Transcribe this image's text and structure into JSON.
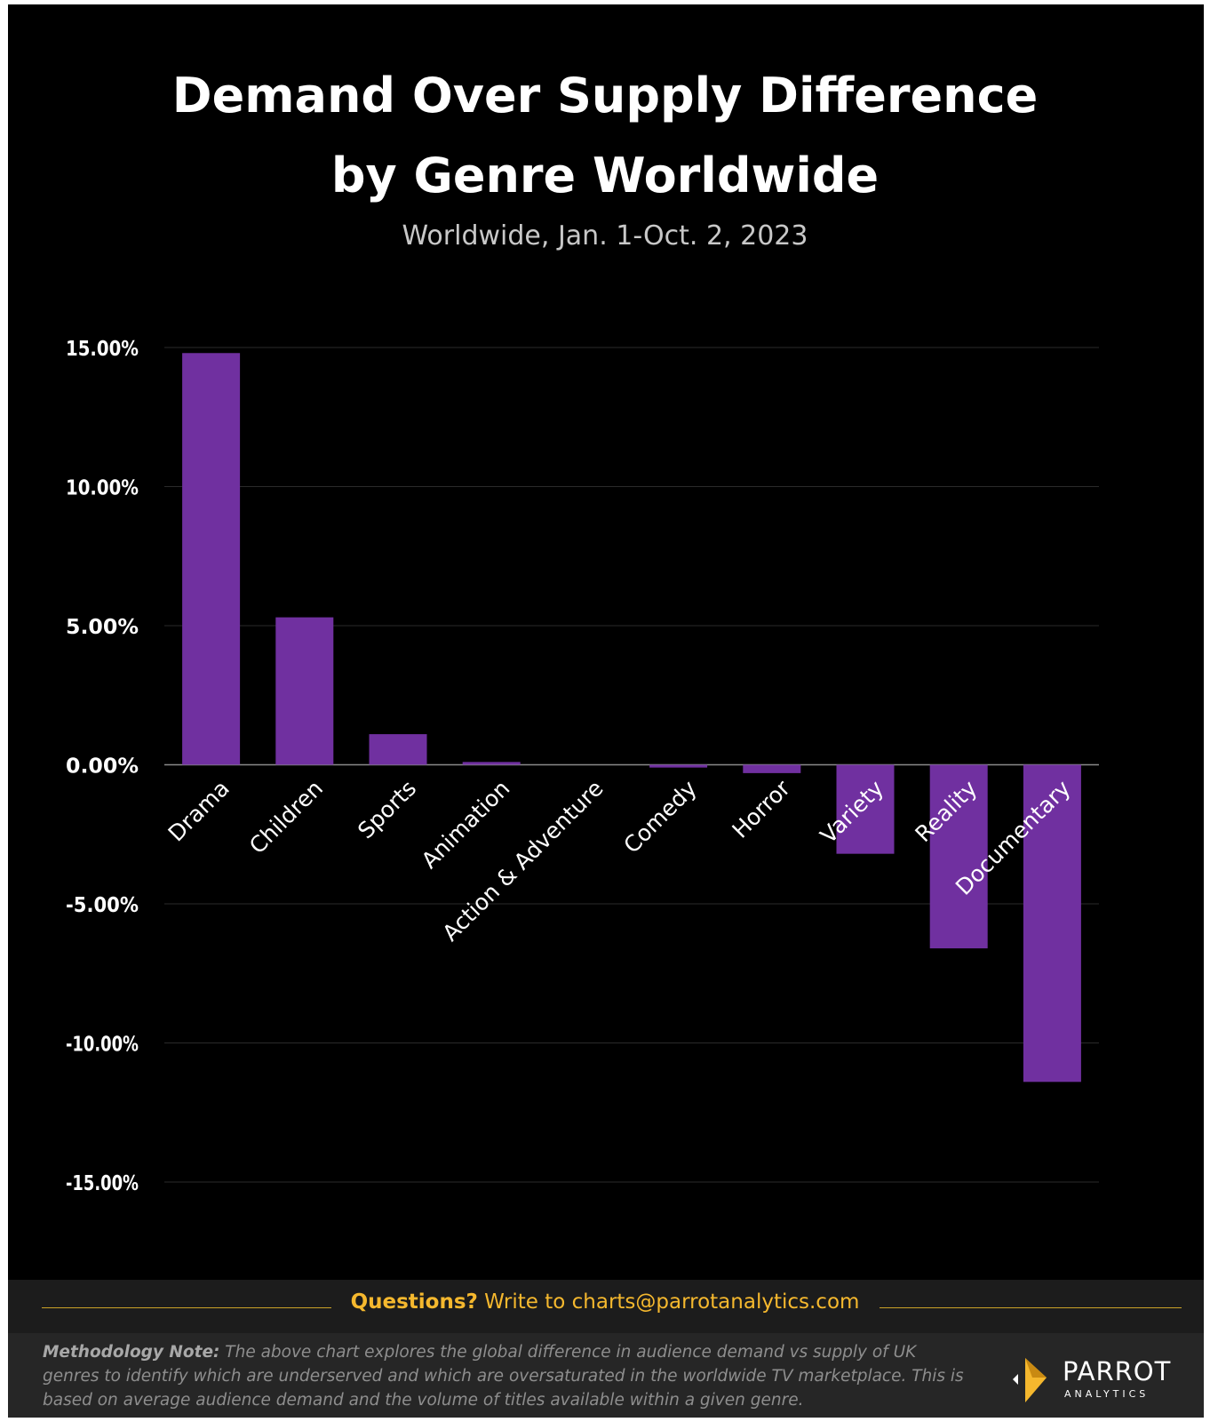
{
  "header": {
    "title_line1": "Demand Over Supply Difference",
    "title_line2": "by Genre Worldwide",
    "subtitle": "Worldwide, Jan. 1-Oct. 2, 2023"
  },
  "chart_data": {
    "type": "bar",
    "title": "Demand Over Supply Difference by Genre Worldwide",
    "subtitle": "Worldwide, Jan. 1-Oct. 2, 2023",
    "categories": [
      "Drama",
      "Children",
      "Sports",
      "Animation",
      "Action & Adventure",
      "Comedy",
      "Horror",
      "Variety",
      "Reality",
      "Documentary"
    ],
    "values": [
      14.8,
      5.3,
      1.1,
      0.1,
      0.0,
      -0.1,
      -0.3,
      -3.2,
      -6.6,
      -11.4
    ],
    "ylim": [
      -15,
      15
    ],
    "yticks": [
      15,
      10,
      5,
      0,
      -5,
      -10,
      -15
    ],
    "ytick_labels": [
      "15.00%",
      "10.00%",
      "5.00%",
      "0.00%",
      "-5.00%",
      "-10.00%",
      "-15.00%"
    ],
    "bar_color": "#7030a0",
    "grid": true,
    "legend": "none"
  },
  "footer": {
    "questions_bold": "Questions?",
    "questions_text": " Write to charts@parrotanalytics.com",
    "methodology_bold": "Methodology Note:",
    "methodology_text": " The above chart explores the global difference in audience demand vs supply of UK genres to identify which are underserved and which are oversaturated in the worldwide TV marketplace. This is based on average audience demand and the volume of titles available within a given genre."
  },
  "logo": {
    "name": "PARROT",
    "sub": "ANALYTICS",
    "icon": "parrot-logo-icon"
  },
  "colors": {
    "background": "#000000",
    "bar": "#7030a0",
    "accent": "#f5b82e"
  }
}
